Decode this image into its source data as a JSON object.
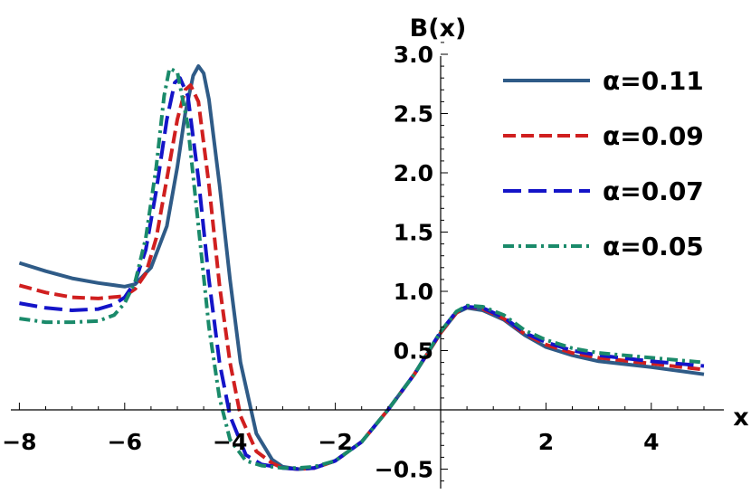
{
  "chart_data": {
    "type": "line",
    "xlabel": "x",
    "ylabel": "B(x)",
    "xlim": [
      -8,
      5
    ],
    "ylim": [
      -0.65,
      3.1
    ],
    "x_ticks": [
      -8,
      -6,
      -4,
      -2,
      2,
      4
    ],
    "x_tick_labels": [
      "−8",
      "−6",
      "−4",
      "−2",
      "2",
      "4"
    ],
    "y_ticks": [
      -0.5,
      0.5,
      1.0,
      1.5,
      2.0,
      2.5,
      3.0
    ],
    "y_tick_labels": [
      "−0.5",
      "0.5",
      "1.0",
      "1.5",
      "2.0",
      "2.5",
      "3.0"
    ],
    "grid": false,
    "legend_position": "top-right",
    "series": [
      {
        "name": "α=0.11",
        "color": "#2f5b87",
        "dash": "solid",
        "x": [
          -8,
          -7.5,
          -7,
          -6.5,
          -6,
          -5.8,
          -5.5,
          -5.2,
          -5.0,
          -4.85,
          -4.7,
          -4.6,
          -4.5,
          -4.4,
          -4.2,
          -4.0,
          -3.8,
          -3.5,
          -3.2,
          -3.0,
          -2.7,
          -2.4,
          -2.0,
          -1.5,
          -1.0,
          -0.5,
          0,
          0.3,
          0.5,
          0.8,
          1.2,
          1.6,
          2.0,
          2.5,
          3.0,
          4.0,
          5.0
        ],
        "y": [
          1.24,
          1.17,
          1.11,
          1.07,
          1.04,
          1.06,
          1.2,
          1.55,
          2.05,
          2.5,
          2.82,
          2.9,
          2.84,
          2.62,
          1.9,
          1.1,
          0.4,
          -0.2,
          -0.42,
          -0.48,
          -0.5,
          -0.49,
          -0.43,
          -0.27,
          0.0,
          0.3,
          0.65,
          0.82,
          0.86,
          0.84,
          0.76,
          0.63,
          0.53,
          0.46,
          0.41,
          0.36,
          0.3
        ]
      },
      {
        "name": "α=0.09",
        "color": "#d01f1f",
        "dash": "dashed",
        "x": [
          -8,
          -7.5,
          -7,
          -6.5,
          -6,
          -5.8,
          -5.6,
          -5.4,
          -5.2,
          -5.0,
          -4.85,
          -4.75,
          -4.6,
          -4.4,
          -4.2,
          -4.0,
          -3.8,
          -3.5,
          -3.2,
          -3.0,
          -2.7,
          -2.4,
          -2.0,
          -1.5,
          -1.0,
          -0.5,
          0,
          0.3,
          0.5,
          0.8,
          1.2,
          1.6,
          2.0,
          2.5,
          3.0,
          4.0,
          5.0
        ],
        "y": [
          1.05,
          0.99,
          0.95,
          0.94,
          0.96,
          1.02,
          1.15,
          1.45,
          1.95,
          2.45,
          2.7,
          2.74,
          2.6,
          1.9,
          1.05,
          0.4,
          -0.05,
          -0.35,
          -0.45,
          -0.49,
          -0.5,
          -0.49,
          -0.43,
          -0.27,
          0.0,
          0.3,
          0.65,
          0.82,
          0.87,
          0.85,
          0.77,
          0.64,
          0.55,
          0.48,
          0.44,
          0.39,
          0.34
        ]
      },
      {
        "name": "α=0.07",
        "color": "#1414c8",
        "dash": "long-dashed",
        "x": [
          -8,
          -7.5,
          -7,
          -6.5,
          -6.2,
          -6.0,
          -5.8,
          -5.6,
          -5.4,
          -5.2,
          -5.05,
          -4.95,
          -4.8,
          -4.6,
          -4.4,
          -4.2,
          -4.0,
          -3.7,
          -3.4,
          -3.0,
          -2.7,
          -2.4,
          -2.0,
          -1.5,
          -1.0,
          -0.5,
          0,
          0.3,
          0.5,
          0.8,
          1.2,
          1.6,
          2.0,
          2.5,
          3.0,
          4.0,
          5.0
        ],
        "y": [
          0.9,
          0.86,
          0.84,
          0.85,
          0.89,
          0.95,
          1.08,
          1.35,
          1.85,
          2.45,
          2.76,
          2.8,
          2.65,
          1.95,
          1.1,
          0.4,
          -0.05,
          -0.38,
          -0.46,
          -0.49,
          -0.5,
          -0.49,
          -0.43,
          -0.27,
          0.0,
          0.3,
          0.66,
          0.83,
          0.87,
          0.86,
          0.78,
          0.65,
          0.57,
          0.5,
          0.46,
          0.41,
          0.37
        ]
      },
      {
        "name": "α=0.05",
        "color": "#1a8a6a",
        "dash": "dash-dot",
        "x": [
          -8,
          -7.5,
          -7,
          -6.5,
          -6.2,
          -6.0,
          -5.8,
          -5.6,
          -5.4,
          -5.25,
          -5.15,
          -5.0,
          -4.8,
          -4.6,
          -4.4,
          -4.2,
          -4.0,
          -3.7,
          -3.4,
          -3.0,
          -2.7,
          -2.4,
          -2.0,
          -1.5,
          -1.0,
          -0.5,
          0,
          0.3,
          0.5,
          0.8,
          1.2,
          1.6,
          2.0,
          2.5,
          3.0,
          4.0,
          5.0
        ],
        "y": [
          0.77,
          0.74,
          0.74,
          0.75,
          0.8,
          0.9,
          1.08,
          1.45,
          2.05,
          2.65,
          2.88,
          2.85,
          2.4,
          1.55,
          0.7,
          0.1,
          -0.25,
          -0.43,
          -0.47,
          -0.49,
          -0.49,
          -0.48,
          -0.43,
          -0.27,
          0.0,
          0.3,
          0.66,
          0.83,
          0.88,
          0.87,
          0.8,
          0.67,
          0.59,
          0.52,
          0.48,
          0.44,
          0.4
        ]
      }
    ]
  }
}
